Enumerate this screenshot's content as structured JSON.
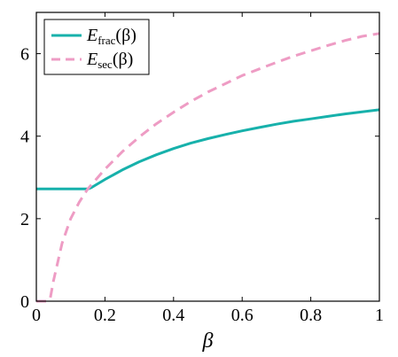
{
  "chart_data": {
    "type": "line",
    "xlabel": "β",
    "ylabel": "",
    "xlim": [
      0,
      1
    ],
    "ylim": [
      0,
      7
    ],
    "xticks": [
      "0",
      "0.2",
      "0.4",
      "0.6",
      "0.8",
      "1"
    ],
    "xtick_values": [
      0,
      0.2,
      0.4,
      0.6,
      0.8,
      1
    ],
    "yticks": [
      "0",
      "2",
      "4",
      "6"
    ],
    "ytick_values": [
      0,
      2,
      4,
      6
    ],
    "grid": false,
    "legend_position": "top-left",
    "series": [
      {
        "name_main": "E",
        "name_sub": "frac",
        "name_arg": "(β)",
        "style": "solid",
        "color": "#17b1ab",
        "x": [
          0,
          0.05,
          0.1,
          0.15,
          0.16,
          0.2,
          0.25,
          0.3,
          0.35,
          0.4,
          0.45,
          0.5,
          0.55,
          0.6,
          0.65,
          0.7,
          0.75,
          0.8,
          0.85,
          0.9,
          0.95,
          1.0
        ],
        "y": [
          2.72,
          2.72,
          2.72,
          2.72,
          2.75,
          2.95,
          3.18,
          3.38,
          3.55,
          3.7,
          3.83,
          3.94,
          4.04,
          4.13,
          4.21,
          4.29,
          4.36,
          4.42,
          4.48,
          4.54,
          4.59,
          4.64
        ]
      },
      {
        "name_main": "E",
        "name_sub": "sec",
        "name_arg": "(β)",
        "style": "dashed",
        "color": "#ee9cc4",
        "x": [
          0,
          0.03,
          0.04,
          0.05,
          0.075,
          0.1,
          0.125,
          0.15,
          0.2,
          0.25,
          0.3,
          0.35,
          0.4,
          0.45,
          0.5,
          0.55,
          0.6,
          0.65,
          0.7,
          0.75,
          0.8,
          0.85,
          0.9,
          0.95,
          1.0
        ],
        "y": [
          0,
          0,
          0.05,
          0.5,
          1.4,
          2.0,
          2.4,
          2.72,
          3.2,
          3.62,
          3.98,
          4.3,
          4.58,
          4.84,
          5.07,
          5.27,
          5.47,
          5.63,
          5.79,
          5.94,
          6.07,
          6.2,
          6.32,
          6.42,
          6.49
        ]
      }
    ]
  }
}
